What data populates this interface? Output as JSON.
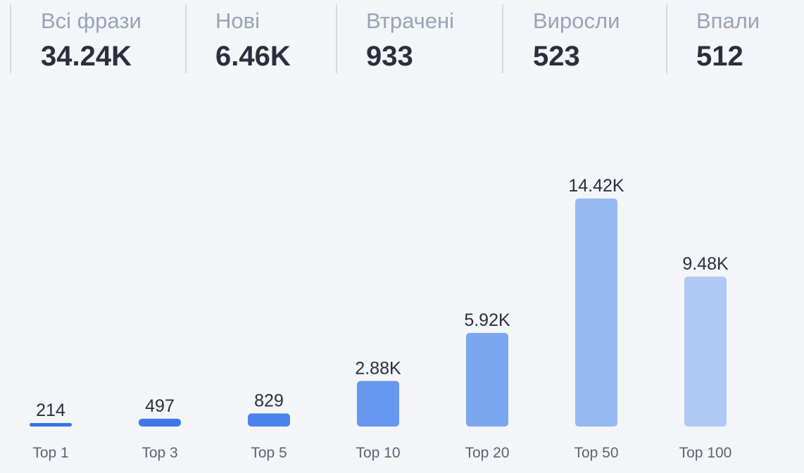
{
  "stats": [
    {
      "label": "Всі фрази",
      "value": "34.24K"
    },
    {
      "label": "Нові",
      "value": "6.46K"
    },
    {
      "label": "Втрачені",
      "value": "933"
    },
    {
      "label": "Виросли",
      "value": "523"
    },
    {
      "label": "Впали",
      "value": "512"
    }
  ],
  "chart_data": {
    "type": "bar",
    "categories": [
      "Top 1",
      "Top 3",
      "Top 5",
      "Top 10",
      "Top 20",
      "Top 50",
      "Top 100"
    ],
    "values": [
      214,
      497,
      829,
      2880,
      5920,
      14420,
      9480
    ],
    "value_labels": [
      "214",
      "497",
      "829",
      "2.88K",
      "5.92K",
      "14.42K",
      "9.48K"
    ],
    "colors": [
      "#3872e8",
      "#3f78e9",
      "#4c82eb",
      "#6797ee",
      "#7ba6f0",
      "#97b9f1",
      "#adc9f4"
    ],
    "title": "",
    "xlabel": "",
    "ylabel": "",
    "ylim": [
      0,
      14420
    ],
    "grid": false,
    "legend": "none"
  }
}
